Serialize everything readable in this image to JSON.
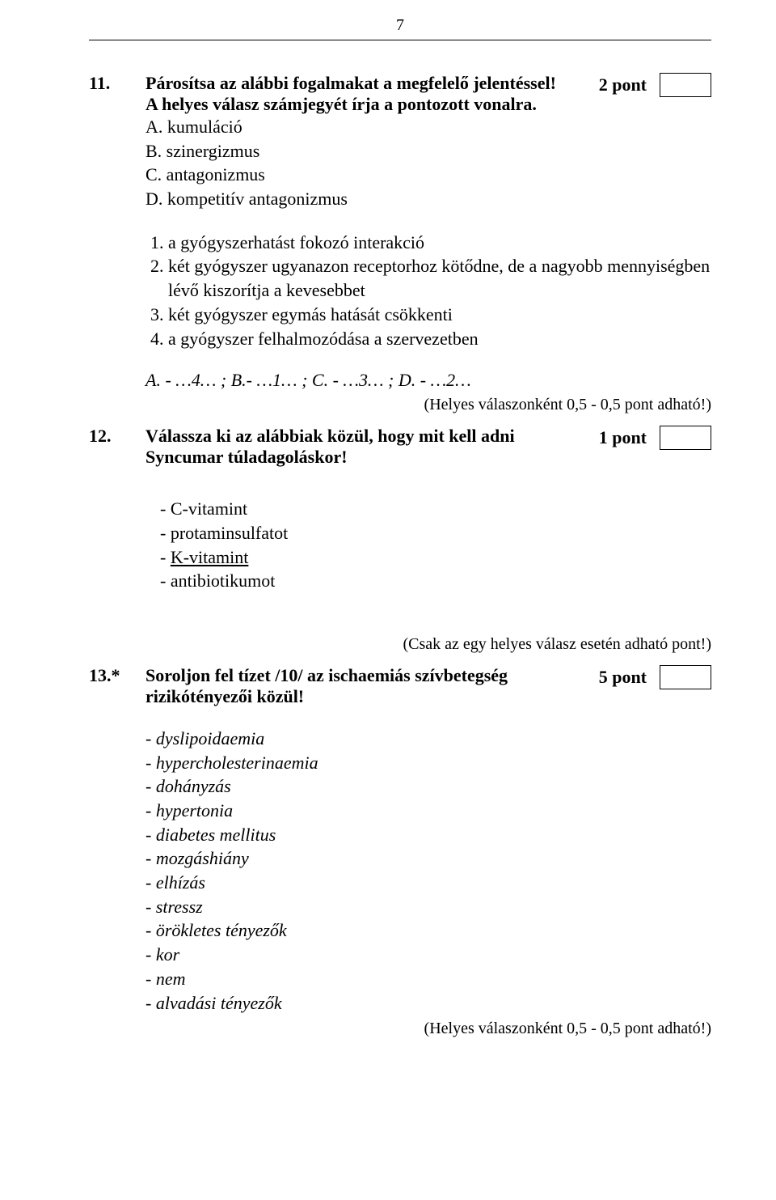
{
  "page_number": "7",
  "q11": {
    "number": "11.",
    "title_line1": "Párosítsa az alábbi fogalmakat a megfelelő jelentéssel!",
    "title_line2": "A helyes válasz számjegyét írja a pontozott vonalra.",
    "points": "2 pont",
    "opts": {
      "a": "A. kumuláció",
      "b": "B. szinergizmus",
      "c": "C. antagonizmus",
      "d": "D. kompetitív antagonizmus"
    },
    "nums": {
      "1": "a gyógyszerhatást fokozó interakció",
      "2": "két gyógyszer ugyanazon receptorhoz kötődne, de a nagyobb mennyiségben lévő kiszorítja a kevesebbet",
      "3": "két gyógyszer egymás hatását csökkenti",
      "4": "a gyógyszer felhalmozódása a szervezetben"
    },
    "answer": "A. - …4… ;   B.- …1… ;    C. - …3… ;   D. - …2…",
    "note": "(Helyes válaszonként 0,5 - 0,5 pont adható!)"
  },
  "q12": {
    "number": "12.",
    "title_line1": "Válassza ki az alábbiak közül, hogy mit kell adni",
    "title_line2": "Syncumar túladagoláskor!",
    "points": "1 pont",
    "opts": {
      "a": "C-vitamint",
      "b": "protaminsulfatot",
      "c": "K-vitamint",
      "d": "antibiotikumot"
    },
    "note": "(Csak az egy helyes válasz esetén adható pont!)"
  },
  "q13": {
    "number": "13.*",
    "title_line1": "Soroljon fel tízet /10/ az ischaemiás szívbetegség",
    "title_line2": "rizikótényezői közül!",
    "points": "5 pont",
    "answers": [
      "- dyslipoidaemia",
      "- hypercholesterinaemia",
      "- dohányzás",
      "- hypertonia",
      "- diabetes mellitus",
      "- mozgáshiány",
      "- elhízás",
      "- stressz",
      "- örökletes tényezők",
      "- kor",
      "- nem",
      "- alvadási tényezők"
    ],
    "note": "(Helyes válaszonként 0,5 - 0,5 pont adható!)"
  }
}
